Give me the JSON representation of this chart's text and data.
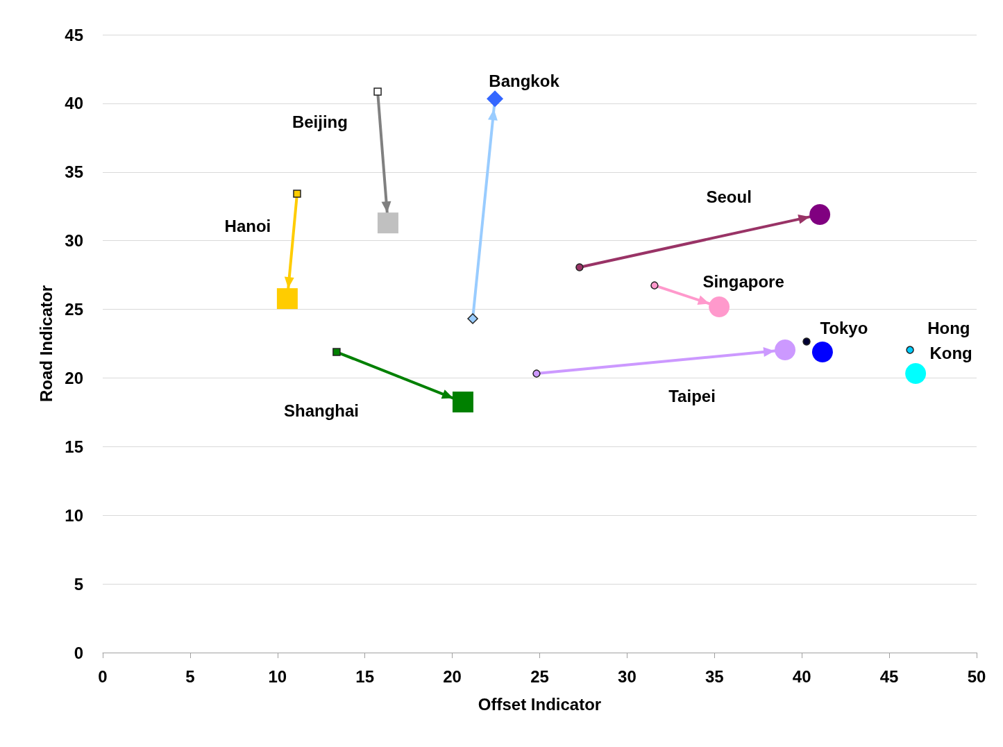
{
  "chart_data": {
    "type": "scatter",
    "xlabel": "Offset Indicator",
    "ylabel": "Road Indicator",
    "xlim": [
      0,
      50
    ],
    "ylim": [
      0,
      45
    ],
    "xticks": [
      0,
      5,
      10,
      15,
      20,
      25,
      30,
      35,
      40,
      45,
      50
    ],
    "yticks": [
      0,
      5,
      10,
      15,
      20,
      25,
      30,
      35,
      40,
      45
    ],
    "grid": "y",
    "legend": false,
    "series": [
      {
        "name": "Beijing",
        "type": "line",
        "marker": "square",
        "color": "#808080",
        "colors": [
          "#ffffff",
          "#c0c0c0"
        ],
        "x": [
          15.73,
          16.32
        ],
        "values": [
          40.85,
          31.29
        ]
      },
      {
        "name": "Bangkok",
        "type": "line",
        "marker": "diamond",
        "color": "#99ccff",
        "colors": [
          "#99ccff",
          "#3366ff"
        ],
        "x": [
          21.17,
          22.44
        ],
        "values": [
          24.32,
          40.34
        ]
      },
      {
        "name": "Hanoi",
        "type": "line",
        "marker": "square",
        "color": "#ffcc00",
        "colors": [
          "#ffcc00",
          "#ffcc00"
        ],
        "x": [
          11.12,
          10.56
        ],
        "values": [
          33.42,
          25.78
        ]
      },
      {
        "name": "Shanghai",
        "type": "line",
        "marker": "square",
        "color": "#008000",
        "colors": [
          "#008000",
          "#008000"
        ],
        "x": [
          13.38,
          20.61
        ],
        "values": [
          21.89,
          18.25
        ]
      },
      {
        "name": "Seoul",
        "type": "line",
        "marker": "circle",
        "color": "#993366",
        "colors": [
          "#993366",
          "#800080"
        ],
        "x": [
          27.28,
          41.03
        ],
        "values": [
          28.06,
          31.9
        ]
      },
      {
        "name": "Singapore",
        "type": "line",
        "marker": "circle",
        "color": "#ff99cc",
        "colors": [
          "#ff99cc",
          "#ff99cc"
        ],
        "x": [
          31.57,
          35.27
        ],
        "values": [
          26.74,
          25.18
        ]
      },
      {
        "name": "Taipei",
        "type": "line",
        "marker": "circle",
        "color": "#cc99ff",
        "colors": [
          "#cc99ff",
          "#cc99ff"
        ],
        "x": [
          24.82,
          39.04
        ],
        "values": [
          20.32,
          22.04
        ]
      },
      {
        "name": "Tokyo",
        "type": "scatter",
        "marker": "circle",
        "colors": [
          "#000033",
          "#0000ff"
        ],
        "x": [
          40.27,
          41.18
        ],
        "values": [
          22.65,
          21.89
        ]
      },
      {
        "name": "Hong Kong",
        "type": "scatter",
        "marker": "circle",
        "colors": [
          "#00ccff",
          "#00ffff"
        ],
        "x": [
          46.19,
          46.51
        ],
        "values": [
          22.04,
          20.32
        ]
      }
    ]
  }
}
